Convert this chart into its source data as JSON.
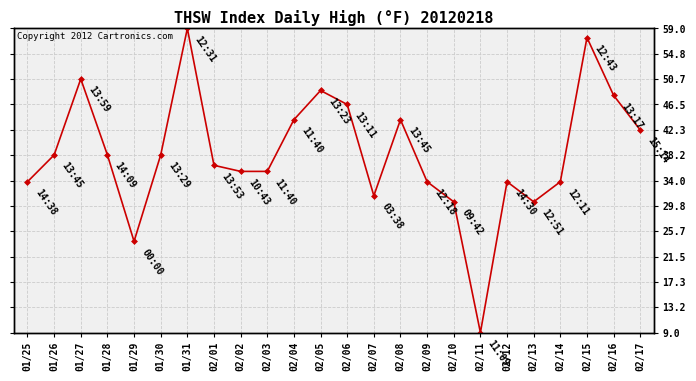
{
  "title": "THSW Index Daily High (°F) 20120218",
  "copyright": "Copyright 2012 Cartronics.com",
  "x_labels": [
    "01/25",
    "01/26",
    "01/27",
    "01/28",
    "01/29",
    "01/30",
    "01/31",
    "02/01",
    "02/02",
    "02/03",
    "02/04",
    "02/05",
    "02/06",
    "02/07",
    "02/08",
    "02/09",
    "02/10",
    "02/11",
    "02/12",
    "02/13",
    "02/14",
    "02/15",
    "02/16",
    "02/17"
  ],
  "y_values": [
    33.8,
    38.2,
    50.7,
    38.2,
    24.0,
    38.2,
    59.0,
    36.5,
    35.5,
    35.5,
    44.0,
    48.8,
    46.5,
    31.5,
    44.0,
    33.8,
    30.5,
    9.0,
    33.8,
    30.5,
    33.8,
    57.5,
    48.0,
    42.3
  ],
  "time_labels": [
    "14:38",
    "13:45",
    "13:59",
    "14:09",
    "00:00",
    "13:29",
    "12:31",
    "13:53",
    "10:43",
    "11:40",
    "11:40",
    "13:23",
    "13:11",
    "03:38",
    "13:45",
    "12:18",
    "09:42",
    "11:09",
    "14:30",
    "12:51",
    "12:11",
    "12:43",
    "13:17",
    "15:14"
  ],
  "y_ticks": [
    9.0,
    13.2,
    17.3,
    21.5,
    25.7,
    29.8,
    34.0,
    38.2,
    42.3,
    46.5,
    50.7,
    54.8,
    59.0
  ],
  "y_min": 9.0,
  "y_max": 59.0,
  "line_color": "#cc0000",
  "marker_color": "#cc0000",
  "bg_color": "#ffffff",
  "plot_bg_color": "#f0f0f0",
  "grid_color": "#cccccc",
  "title_fontsize": 11,
  "label_fontsize": 7,
  "tick_fontsize": 7,
  "copyright_fontsize": 6.5
}
